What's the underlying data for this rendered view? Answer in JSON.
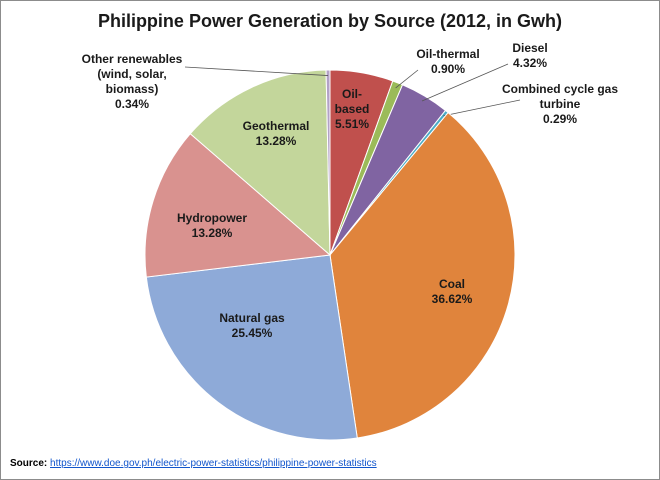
{
  "chart_data": {
    "type": "pie",
    "title": "Philippine Power Generation by Source (2012, in Gwh)",
    "categories": [
      "Oil-based",
      "Oil-thermal",
      "Diesel",
      "Combined cycle gas turbine",
      "Coal",
      "Natural gas",
      "Hydropower",
      "Geothermal",
      "Other renewables (wind, solar, biomass)"
    ],
    "values": [
      5.51,
      0.9,
      4.32,
      0.29,
      36.62,
      25.45,
      13.28,
      13.28,
      0.34
    ],
    "value_labels": [
      "5.51%",
      "0.90%",
      "4.32%",
      "0.29%",
      "36.62%",
      "25.45%",
      "13.28%",
      "13.28%",
      "0.34%"
    ],
    "colors": [
      "#c0504d",
      "#9bbb59",
      "#8064a2",
      "#4bacc6",
      "#e0843c",
      "#8eaad8",
      "#d9928f",
      "#c3d69b",
      "#b3a2c7"
    ],
    "source_label": "Source:",
    "source_url": "https://www.doe.gov.ph/electric-power-statistics/philippine-power-statistics"
  }
}
